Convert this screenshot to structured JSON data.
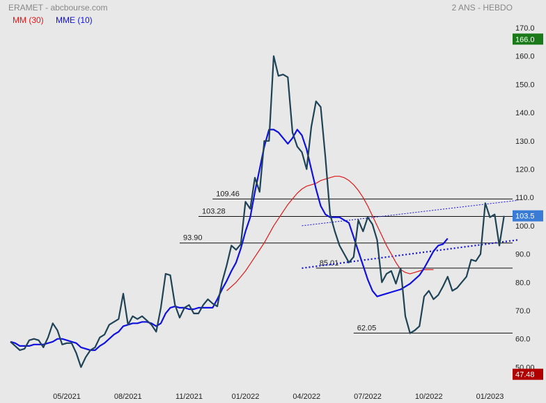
{
  "header": {
    "source": "ERAMET - abcbourse.com",
    "period": "2 ANS - HEBDO"
  },
  "colors": {
    "background": "#e8e8e8",
    "price": "#1f4356",
    "mm30": "#e01818",
    "mme10": "#1010e0",
    "last_badge": "#3a7bd5",
    "high_badge": "#1a7a1a",
    "low_badge": "#b00000",
    "levels": "#111111",
    "trend": "#1010e0"
  },
  "chart_data": {
    "type": "line",
    "title": "",
    "xlabel": "",
    "ylabel": "",
    "ylim": [
      50,
      170
    ],
    "y_ticks": [
      "170.0",
      "160.0",
      "150.0",
      "140.0",
      "130.0",
      "120.0",
      "110.0",
      "100.0",
      "90.0",
      "80.0",
      "70.0",
      "60.0",
      "50.00"
    ],
    "x_ticks": [
      {
        "label": "05/2021",
        "week": 12
      },
      {
        "label": "08/2021",
        "week": 25
      },
      {
        "label": "11/2021",
        "week": 38
      },
      {
        "label": "01/2022",
        "week": 50
      },
      {
        "label": "04/2022",
        "week": 63
      },
      {
        "label": "07/2022",
        "week": 76
      },
      {
        "label": "10/2022",
        "week": 89
      },
      {
        "label": "01/2023",
        "week": 102
      }
    ],
    "grid": false,
    "legend": "top-left",
    "series": [
      {
        "name": "",
        "values": [
          59,
          57.5,
          56,
          56.5,
          59.5,
          60,
          59.5,
          57,
          60.5,
          65.5,
          63,
          58,
          58.5,
          58.5,
          55,
          50,
          53.5,
          56,
          57,
          60.5,
          61.5,
          65,
          66,
          67,
          76,
          65,
          68,
          67,
          68,
          66.5,
          65,
          62.5,
          71,
          83,
          82.5,
          72,
          67.5,
          71,
          72,
          69,
          69,
          72,
          74,
          72.5,
          71.5,
          80,
          86,
          93,
          91.5,
          93.5,
          108.5,
          106,
          117,
          112,
          130,
          130,
          160,
          153,
          153.5,
          152.5,
          133,
          128,
          126,
          120,
          135,
          144,
          142,
          124,
          104,
          98,
          93,
          90,
          87,
          89,
          102,
          98,
          103,
          100.5,
          95,
          80,
          83,
          84,
          79.5,
          85,
          68,
          62,
          63,
          64.5,
          75,
          77,
          74,
          75.5,
          78.5,
          82,
          77,
          78,
          80,
          82,
          88,
          87.5,
          90,
          108,
          103,
          104,
          93,
          103.5
        ]
      },
      {
        "name": "MM (30)",
        "values": [
          null,
          null,
          null,
          null,
          null,
          null,
          null,
          null,
          null,
          null,
          null,
          null,
          null,
          null,
          null,
          null,
          null,
          null,
          null,
          null,
          null,
          null,
          null,
          null,
          null,
          null,
          null,
          null,
          null,
          null,
          null,
          null,
          null,
          null,
          null,
          null,
          null,
          null,
          null,
          null,
          null,
          null,
          null,
          null,
          null,
          null,
          77,
          78.5,
          80,
          82,
          84,
          86.5,
          89,
          91.5,
          94,
          97,
          100,
          102.5,
          105,
          107.5,
          109.5,
          111.5,
          113,
          114,
          114.5,
          115,
          116,
          116.5,
          117,
          117.5,
          117.5,
          117,
          116,
          114.5,
          112.5,
          110,
          107,
          103.5,
          100,
          96.5,
          93,
          90,
          87,
          84.5,
          83.5,
          83,
          83.5,
          84,
          84.5,
          84.5,
          84.5
        ]
      },
      {
        "name": "MME (10)",
        "values": [
          59,
          58.5,
          57.5,
          57.5,
          57.5,
          58,
          58,
          58,
          58.5,
          59,
          60,
          60,
          59.5,
          59,
          58.5,
          57,
          56.5,
          56,
          56,
          57.5,
          58.5,
          60,
          61.5,
          62.5,
          64.5,
          65,
          65.5,
          65.5,
          66,
          66,
          65.5,
          64.5,
          65.5,
          69,
          71,
          71.5,
          71,
          71,
          70.5,
          70.5,
          71,
          71,
          71,
          71,
          74,
          77.5,
          80.5,
          84,
          87,
          92,
          98,
          103,
          112,
          120,
          128,
          134,
          134,
          133,
          131,
          129,
          131,
          134,
          132,
          127,
          120,
          113,
          107,
          104,
          103,
          103,
          103,
          102,
          101,
          96,
          91,
          86,
          81,
          77,
          75,
          75.5,
          76,
          76.5,
          77,
          77.5,
          78.5,
          79.5,
          81,
          82.5,
          85,
          88,
          91,
          93,
          93.5,
          95.5
        ]
      }
    ],
    "levels": [
      {
        "label": "109.46",
        "value": 109.46
      },
      {
        "label": "103.28",
        "value": 103.28
      },
      {
        "label": "93.90",
        "value": 93.9
      },
      {
        "label": "85.01",
        "value": 85.01
      },
      {
        "label": "62.05",
        "value": 62.05
      }
    ],
    "trendlines": [
      {
        "x1": 62,
        "y1": 100,
        "x2": 108,
        "y2": 109
      },
      {
        "x1": 62,
        "y1": 85,
        "x2": 108,
        "y2": 95
      }
    ],
    "badges": {
      "high": "166.0",
      "last": "103.5",
      "low": "47.48"
    }
  }
}
